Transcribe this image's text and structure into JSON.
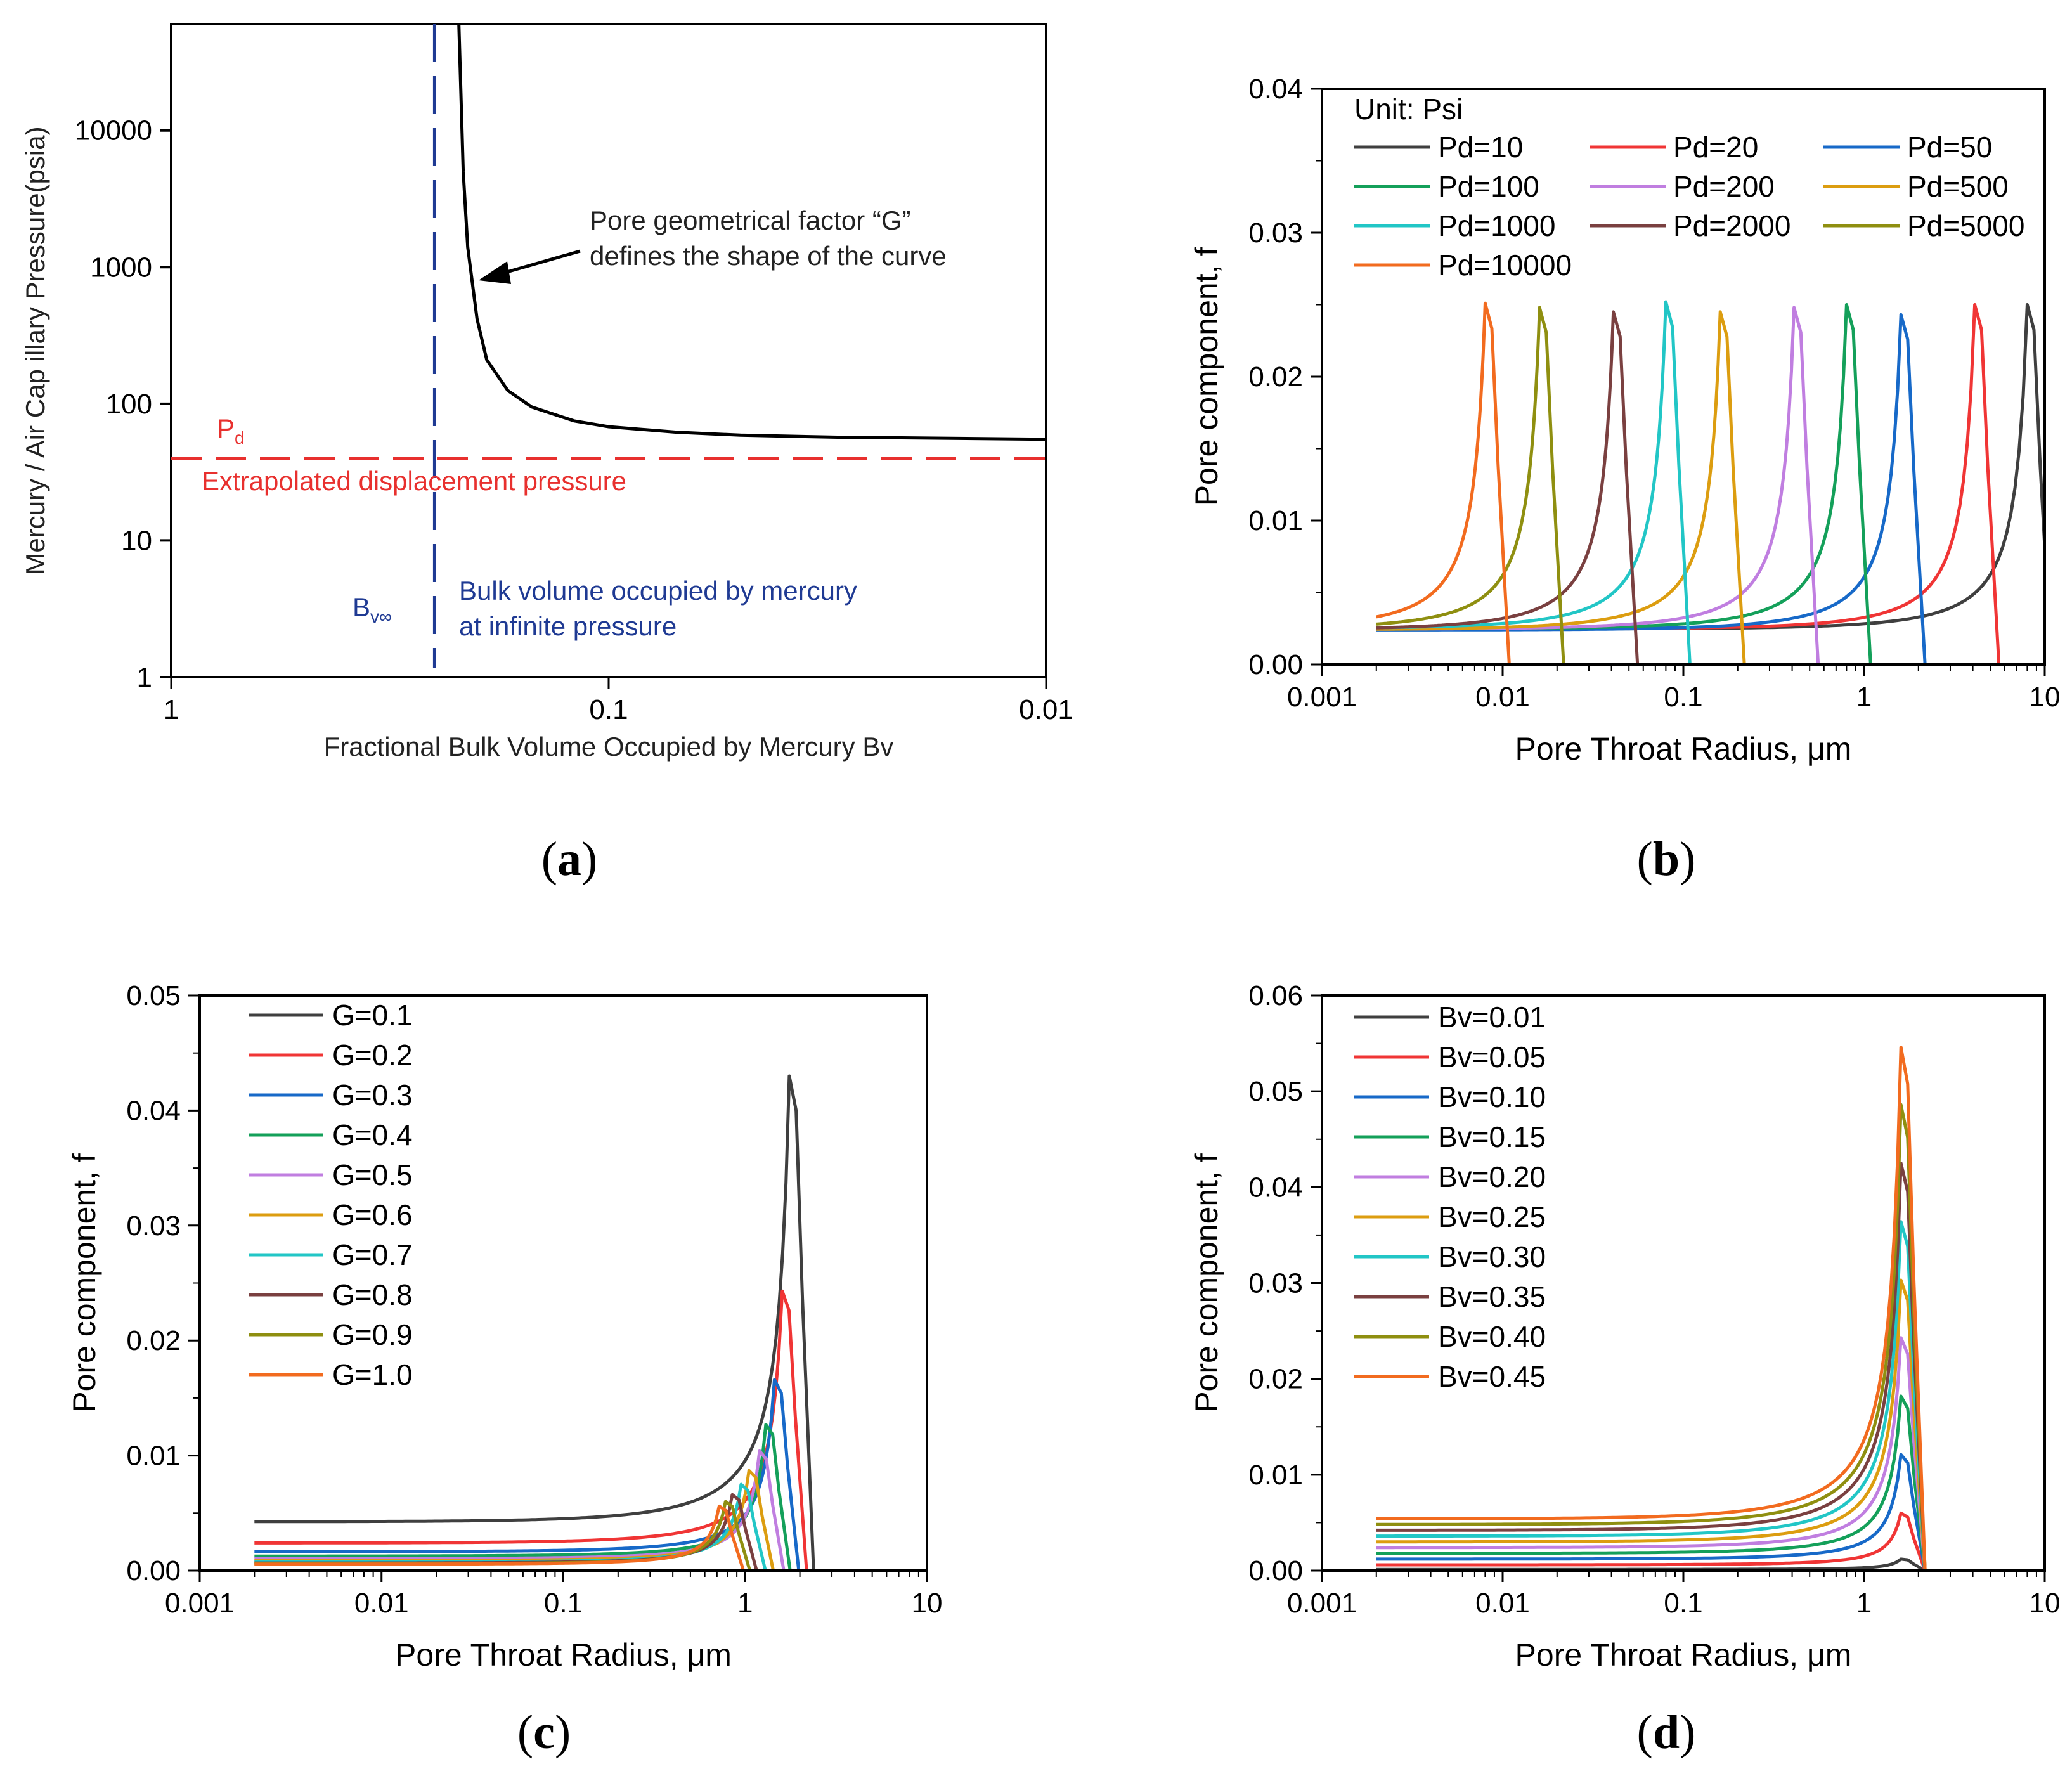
{
  "chart_data": [
    {
      "panel": "a",
      "type": "line",
      "panel_label": "a",
      "xlabel": "Fractional Bulk Volume Occupied by Mercury Bv",
      "ylabel": "Mercury / Air  Cap illary Pressure(psia)",
      "x_scale": "log-reversed",
      "xlim": [
        1,
        0.01
      ],
      "ylim": [
        1,
        60000
      ],
      "x_ticks": [
        "1",
        "0.1",
        "0.01"
      ],
      "y_ticks": [
        "1",
        "10",
        "100",
        "1000",
        "10000"
      ],
      "series": [
        {
          "name": "capillary-pressure-curve",
          "color": "#000000",
          "x": [
            0.22,
            0.215,
            0.21,
            0.2,
            0.19,
            0.17,
            0.15,
            0.12,
            0.1,
            0.07,
            0.05,
            0.03,
            0.01
          ],
          "y": [
            60000,
            5000,
            1400,
            420,
            210,
            125,
            95,
            75,
            68,
            62,
            59,
            57,
            55
          ]
        }
      ],
      "pd_line": {
        "y": 40,
        "color": "#e8302e"
      },
      "bv_line": {
        "x": 0.25,
        "color": "#1f3a93"
      },
      "annotations": {
        "pd_symbol": "P",
        "pd_sub": "d",
        "pd_text": "Extrapolated displacement pressure",
        "bv_symbol": "B",
        "bv_sub": "v∞",
        "bv_text_line1": "Bulk volume occupied by mercury",
        "bv_text_line2": "at infinite pressure",
        "g_text_line1": "Pore geometrical factor “G”",
        "g_text_line2": "defines the shape of the curve"
      }
    },
    {
      "panel": "b",
      "type": "line",
      "panel_label": "b",
      "xlabel": "Pore Throat Radius, μm",
      "ylabel": "Pore component, f",
      "x_scale": "log",
      "xlim": [
        0.001,
        10
      ],
      "ylim": [
        0,
        0.04
      ],
      "x_ticks": [
        "0.001",
        "0.01",
        "0.1",
        "1",
        "10"
      ],
      "y_ticks": [
        "0.00",
        "0.01",
        "0.02",
        "0.03",
        "0.04"
      ],
      "legend_title": "Unit: Psi",
      "series": [
        {
          "name": "Pd=10",
          "color": "#3f3f3f",
          "peak_r": 8.0,
          "peak": 0.025
        },
        {
          "name": "Pd=20",
          "color": "#f03535",
          "peak_r": 4.1,
          "peak": 0.025
        },
        {
          "name": "Pd=50",
          "color": "#1769c8",
          "peak_r": 1.6,
          "peak": 0.0243
        },
        {
          "name": "Pd=100",
          "color": "#14a05a",
          "peak_r": 0.8,
          "peak": 0.025
        },
        {
          "name": "Pd=200",
          "color": "#c07ee0",
          "peak_r": 0.41,
          "peak": 0.0248
        },
        {
          "name": "Pd=500",
          "color": "#dc9d10",
          "peak_r": 0.16,
          "peak": 0.0245
        },
        {
          "name": "Pd=1000",
          "color": "#22c6c6",
          "peak_r": 0.08,
          "peak": 0.0252
        },
        {
          "name": "Pd=2000",
          "color": "#7a4040",
          "peak_r": 0.041,
          "peak": 0.0245
        },
        {
          "name": "Pd=5000",
          "color": "#8f8f10",
          "peak_r": 0.016,
          "peak": 0.0248
        },
        {
          "name": "Pd=10000",
          "color": "#f26b1f",
          "peak_r": 0.008,
          "peak": 0.0251
        }
      ]
    },
    {
      "panel": "c",
      "type": "line",
      "panel_label": "c",
      "xlabel": "Pore Throat Radius, μm",
      "ylabel": "Pore component, f",
      "x_scale": "log",
      "xlim": [
        0.001,
        10
      ],
      "ylim": [
        0,
        0.05
      ],
      "x_ticks": [
        "0.001",
        "0.01",
        "0.1",
        "1",
        "10"
      ],
      "y_ticks": [
        "0.00",
        "0.01",
        "0.02",
        "0.03",
        "0.04",
        "0.05"
      ],
      "series": [
        {
          "name": "G=0.1",
          "color": "#3f3f3f",
          "peak_r": 1.75,
          "peak": 0.043
        },
        {
          "name": "G=0.2",
          "color": "#f03535",
          "peak_r": 1.6,
          "peak": 0.0243
        },
        {
          "name": "G=0.3",
          "color": "#1769c8",
          "peak_r": 1.45,
          "peak": 0.0166
        },
        {
          "name": "G=0.4",
          "color": "#14a05a",
          "peak_r": 1.3,
          "peak": 0.0127
        },
        {
          "name": "G=0.5",
          "color": "#c07ee0",
          "peak_r": 1.2,
          "peak": 0.0104
        },
        {
          "name": "G=0.6",
          "color": "#dc9d10",
          "peak_r": 1.05,
          "peak": 0.0087
        },
        {
          "name": "G=0.7",
          "color": "#22c6c6",
          "peak_r": 0.95,
          "peak": 0.0075
        },
        {
          "name": "G=0.8",
          "color": "#7a4040",
          "peak_r": 0.85,
          "peak": 0.0066
        },
        {
          "name": "G=0.9",
          "color": "#8f8f10",
          "peak_r": 0.78,
          "peak": 0.006
        },
        {
          "name": "G=1.0",
          "color": "#f26b1f",
          "peak_r": 0.72,
          "peak": 0.0056
        }
      ]
    },
    {
      "panel": "d",
      "type": "line",
      "panel_label": "d",
      "xlabel": "Pore Throat Radius, μm",
      "ylabel": "Pore component, f",
      "x_scale": "log",
      "xlim": [
        0.001,
        10
      ],
      "ylim": [
        0,
        0.06
      ],
      "x_ticks": [
        "0.001",
        "0.01",
        "0.1",
        "1",
        "10"
      ],
      "y_ticks": [
        "0.00",
        "0.01",
        "0.02",
        "0.03",
        "0.04",
        "0.05",
        "0.06"
      ],
      "series": [
        {
          "name": "Bv=0.01",
          "color": "#3f3f3f",
          "peak_r": 1.6,
          "peak": 0.0012
        },
        {
          "name": "Bv=0.05",
          "color": "#f03535",
          "peak_r": 1.6,
          "peak": 0.006
        },
        {
          "name": "Bv=0.10",
          "color": "#1769c8",
          "peak_r": 1.6,
          "peak": 0.0121
        },
        {
          "name": "Bv=0.15",
          "color": "#14a05a",
          "peak_r": 1.6,
          "peak": 0.0182
        },
        {
          "name": "Bv=0.20",
          "color": "#c07ee0",
          "peak_r": 1.6,
          "peak": 0.0243
        },
        {
          "name": "Bv=0.25",
          "color": "#dc9d10",
          "peak_r": 1.6,
          "peak": 0.0303
        },
        {
          "name": "Bv=0.30",
          "color": "#22c6c6",
          "peak_r": 1.6,
          "peak": 0.0364
        },
        {
          "name": "Bv=0.35",
          "color": "#7a4040",
          "peak_r": 1.6,
          "peak": 0.0425
        },
        {
          "name": "Bv=0.40",
          "color": "#8f8f10",
          "peak_r": 1.6,
          "peak": 0.0486
        },
        {
          "name": "Bv=0.45",
          "color": "#f26b1f",
          "peak_r": 1.6,
          "peak": 0.0546
        }
      ]
    }
  ]
}
